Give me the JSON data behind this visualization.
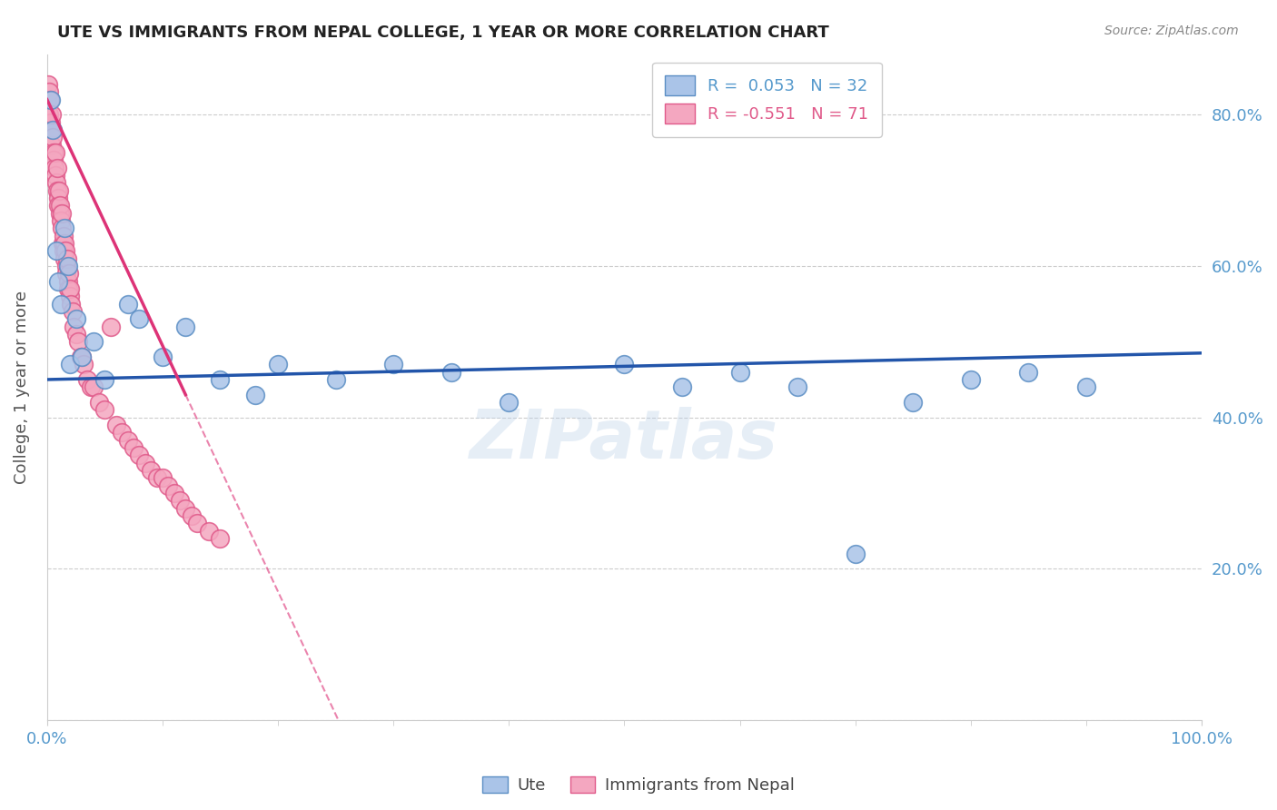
{
  "title": "UTE VS IMMIGRANTS FROM NEPAL COLLEGE, 1 YEAR OR MORE CORRELATION CHART",
  "source": "Source: ZipAtlas.com",
  "ylabel": "College, 1 year or more",
  "legend_ute": "Ute",
  "legend_nepal": "Immigrants from Nepal",
  "R_ute": 0.053,
  "N_ute": 32,
  "R_nepal": -0.551,
  "N_nepal": 71,
  "watermark": "ZIPatlas",
  "ute_x": [
    0.3,
    0.5,
    0.8,
    1.0,
    1.2,
    1.5,
    1.8,
    2.0,
    2.5,
    3.0,
    4.0,
    5.0,
    7.0,
    8.0,
    10.0,
    12.0,
    15.0,
    18.0,
    20.0,
    25.0,
    30.0,
    35.0,
    40.0,
    50.0,
    55.0,
    60.0,
    65.0,
    70.0,
    75.0,
    80.0,
    85.0,
    90.0
  ],
  "ute_y": [
    82,
    78,
    62,
    58,
    55,
    65,
    60,
    47,
    53,
    48,
    50,
    45,
    55,
    53,
    48,
    52,
    45,
    43,
    47,
    45,
    47,
    46,
    42,
    47,
    44,
    46,
    44,
    22,
    42,
    45,
    46,
    44
  ],
  "nepal_x": [
    0.05,
    0.1,
    0.15,
    0.2,
    0.25,
    0.3,
    0.35,
    0.4,
    0.45,
    0.5,
    0.55,
    0.6,
    0.65,
    0.7,
    0.75,
    0.8,
    0.85,
    0.9,
    0.95,
    1.0,
    1.05,
    1.1,
    1.15,
    1.2,
    1.25,
    1.3,
    1.35,
    1.4,
    1.45,
    1.5,
    1.55,
    1.6,
    1.65,
    1.7,
    1.75,
    1.8,
    1.85,
    1.9,
    1.95,
    2.0,
    2.1,
    2.2,
    2.3,
    2.5,
    2.7,
    2.9,
    3.0,
    3.2,
    3.5,
    3.8,
    4.0,
    4.5,
    5.0,
    5.5,
    6.0,
    6.5,
    7.0,
    7.5,
    8.0,
    8.5,
    9.0,
    9.5,
    10.0,
    10.5,
    11.0,
    11.5,
    12.0,
    12.5,
    13.0,
    14.0,
    15.0
  ],
  "nepal_y": [
    82,
    84,
    83,
    80,
    82,
    79,
    78,
    80,
    76,
    77,
    75,
    74,
    73,
    75,
    72,
    71,
    73,
    70,
    69,
    68,
    70,
    67,
    68,
    66,
    65,
    67,
    63,
    64,
    62,
    63,
    61,
    62,
    60,
    59,
    61,
    58,
    57,
    59,
    56,
    57,
    55,
    54,
    52,
    51,
    50,
    48,
    48,
    47,
    45,
    44,
    44,
    42,
    41,
    52,
    39,
    38,
    37,
    36,
    35,
    34,
    33,
    32,
    32,
    31,
    30,
    29,
    28,
    27,
    26,
    25,
    24
  ],
  "ute_color": "#aac4e8",
  "nepal_color": "#f4a7c0",
  "ute_edge_color": "#5b8ec4",
  "nepal_edge_color": "#e05a8a",
  "trend_ute_color": "#2255aa",
  "trend_nepal_color": "#dd3377",
  "background_color": "#ffffff",
  "grid_color": "#cccccc",
  "axis_color": "#5599cc",
  "ylim": [
    0,
    88
  ],
  "xlim": [
    0,
    100
  ],
  "yticks": [
    0,
    20,
    40,
    60,
    80
  ],
  "ytick_labels": [
    "",
    "20.0%",
    "40.0%",
    "60.0%",
    "80.0%"
  ]
}
